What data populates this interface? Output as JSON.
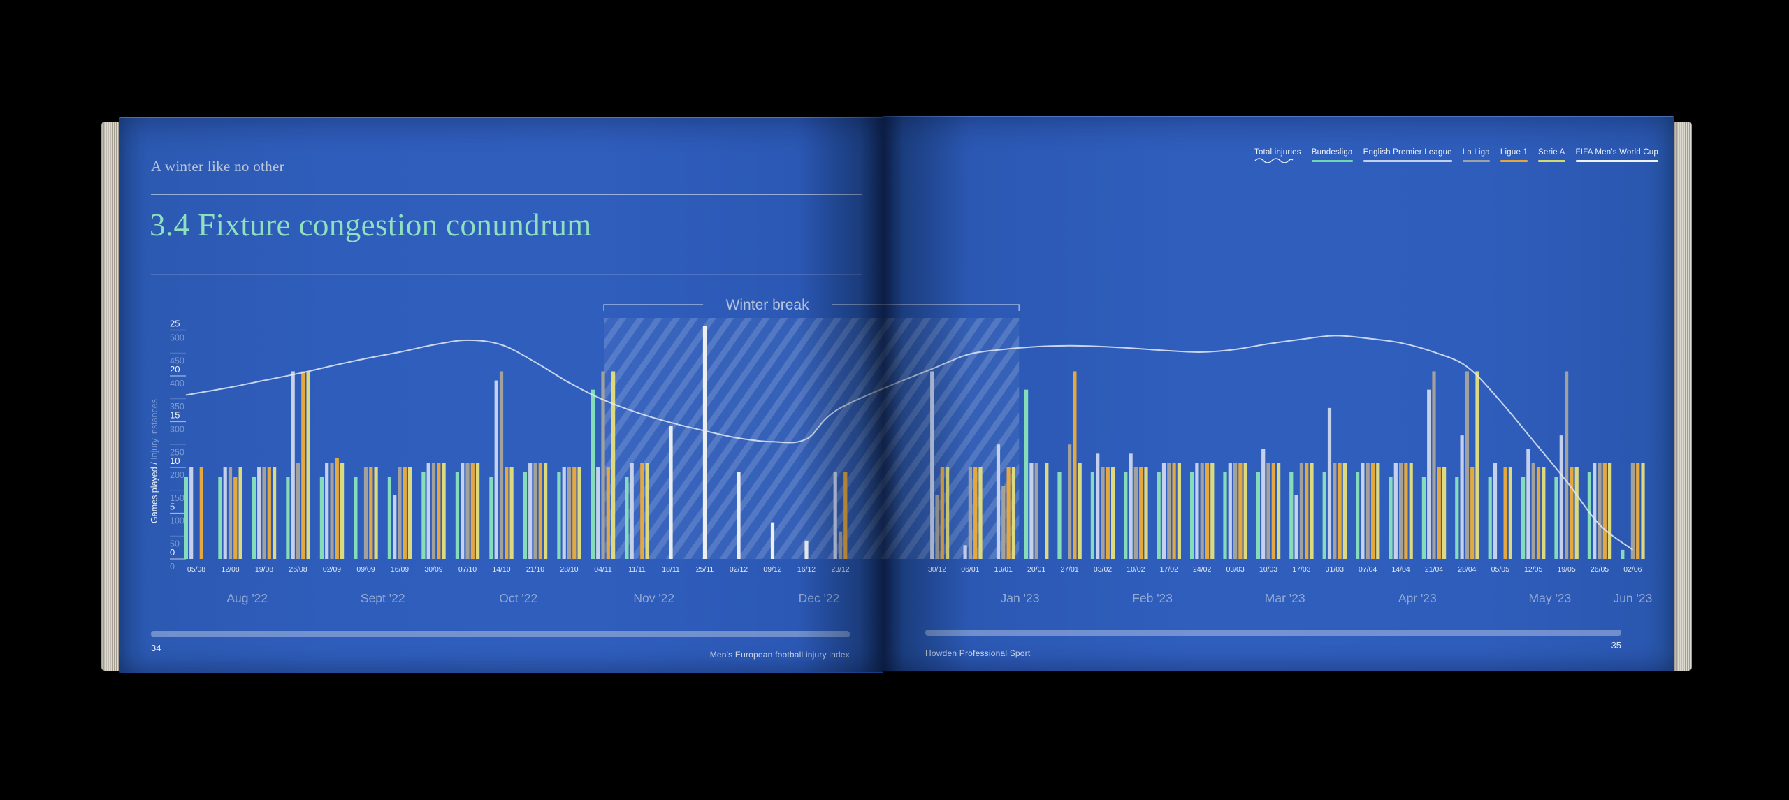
{
  "book": {
    "left_page": {
      "eyebrow": "A winter like no other",
      "title": "3.4 Fixture congestion conundrum",
      "page_number": "34",
      "footer_text": "Men's European football injury index"
    },
    "right_page": {
      "page_number": "35",
      "footer_text": "Howden Professional Sport"
    }
  },
  "legend": {
    "items": [
      {
        "label": "Total injuries",
        "color": "#e9eef6",
        "style": "wavy"
      },
      {
        "label": "Bundesliga",
        "color": "#6fd7ae",
        "style": "solid"
      },
      {
        "label": "English Premier League",
        "color": "#c3d0ec",
        "style": "solid"
      },
      {
        "label": "La Liga",
        "color": "#9fa2a4",
        "style": "solid"
      },
      {
        "label": "Ligue 1",
        "color": "#e3a53e",
        "style": "solid"
      },
      {
        "label": "Serie A",
        "color": "#d4da6e",
        "style": "solid"
      },
      {
        "label": "FIFA Men's World Cup",
        "color": "#eef1f5",
        "style": "solid"
      }
    ]
  },
  "chart_data": {
    "type": "bar",
    "title": "3.4 Fixture congestion conundrum",
    "ylabel": "Games played / Injury instances",
    "axes": {
      "games_played": {
        "min": 0,
        "max": 25,
        "step": 5
      },
      "injury_instances": {
        "min": 0,
        "max": 500,
        "step": 50
      }
    },
    "series": [
      {
        "key": "bundesliga",
        "name": "Bundesliga",
        "color": "#85dcba"
      },
      {
        "key": "epl",
        "name": "English Premier League",
        "color": "#c5d1ec"
      },
      {
        "key": "laliga",
        "name": "La Liga",
        "color": "#a3a19c"
      },
      {
        "key": "ligue1",
        "name": "Ligue 1",
        "color": "#e5a83f"
      },
      {
        "key": "seriea",
        "name": "Serie A",
        "color": "#dcd97e"
      },
      {
        "key": "worldcup",
        "name": "FIFA Men's World Cup",
        "color": "#eceff2"
      }
    ],
    "line_series": {
      "name": "Total injuries",
      "color": "#e3eaf5"
    },
    "annotation": {
      "label": "Winter break",
      "from_date": "04/11",
      "to_date": "20/01"
    },
    "weeks": [
      {
        "date": "05/08",
        "month": "Aug '22",
        "page": "left",
        "games": [
          9,
          10,
          0,
          10,
          0,
          0
        ],
        "total_injuries": 362
      },
      {
        "date": "12/08",
        "month": "Aug '22",
        "page": "left",
        "games": [
          9,
          10,
          10,
          9,
          10,
          0
        ],
        "total_injuries": 375
      },
      {
        "date": "19/08",
        "month": "Aug '22",
        "page": "left",
        "games": [
          9,
          10,
          10,
          10,
          10,
          0
        ],
        "total_injuries": 390
      },
      {
        "date": "26/08",
        "month": "Aug '22",
        "page": "left",
        "games": [
          9,
          20.5,
          10.5,
          20.5,
          20.5,
          0
        ],
        "total_injuries": 405
      },
      {
        "date": "02/09",
        "month": "Sept '22",
        "page": "left",
        "games": [
          9,
          10.5,
          10.5,
          11,
          10.5,
          0
        ],
        "total_injuries": 422
      },
      {
        "date": "09/09",
        "month": "Sept '22",
        "page": "left",
        "games": [
          9,
          0,
          10,
          10,
          10,
          0
        ],
        "total_injuries": 438
      },
      {
        "date": "16/09",
        "month": "Sept '22",
        "page": "left",
        "games": [
          9,
          7,
          10,
          10,
          10,
          0
        ],
        "total_injuries": 452
      },
      {
        "date": "30/09",
        "month": "Sept '22",
        "page": "left",
        "games": [
          9.5,
          10.5,
          10.5,
          10.5,
          10.5,
          0
        ],
        "total_injuries": 468
      },
      {
        "date": "07/10",
        "month": "Oct '22",
        "page": "left",
        "games": [
          9.5,
          10.5,
          10.5,
          10.5,
          10.5,
          0
        ],
        "total_injuries": 478
      },
      {
        "date": "14/10",
        "month": "Oct '22",
        "page": "left",
        "games": [
          9,
          19.5,
          20.5,
          10,
          10,
          0
        ],
        "total_injuries": 468
      },
      {
        "date": "21/10",
        "month": "Oct '22",
        "page": "left",
        "games": [
          9.5,
          10.5,
          10.5,
          10.5,
          10.5,
          0
        ],
        "total_injuries": 430
      },
      {
        "date": "28/10",
        "month": "Oct '22",
        "page": "left",
        "games": [
          9.5,
          10,
          10,
          10,
          10,
          0
        ],
        "total_injuries": 385
      },
      {
        "date": "04/11",
        "month": "Nov '22",
        "page": "left",
        "games": [
          18.5,
          10,
          20.5,
          10,
          20.5,
          0
        ],
        "total_injuries": 348
      },
      {
        "date": "11/11",
        "month": "Nov '22",
        "page": "left",
        "games": [
          9,
          10.5,
          0,
          10.5,
          10.5,
          0
        ],
        "total_injuries": 320
      },
      {
        "date": "18/11",
        "month": "Nov '22",
        "page": "left",
        "games": [
          0,
          0,
          0,
          0,
          0,
          14.5
        ],
        "total_injuries": 298
      },
      {
        "date": "25/11",
        "month": "Nov '22",
        "page": "left",
        "games": [
          0,
          0,
          0,
          0,
          0,
          25.5
        ],
        "total_injuries": 280
      },
      {
        "date": "02/12",
        "month": "Dec '22",
        "page": "left",
        "games": [
          0,
          0,
          0,
          0,
          0,
          9.5
        ],
        "total_injuries": 264
      },
      {
        "date": "09/12",
        "month": "Dec '22",
        "page": "left",
        "games": [
          0,
          0,
          0,
          0,
          0,
          4
        ],
        "total_injuries": 256
      },
      {
        "date": "16/12",
        "month": "Dec '22",
        "page": "left",
        "games": [
          0,
          0,
          0,
          0,
          0,
          2
        ],
        "total_injuries": 262
      },
      {
        "date": "23/12",
        "month": "Dec '22",
        "page": "left",
        "games": [
          0,
          9.5,
          3,
          9.5,
          0,
          0
        ],
        "total_injuries": 330
      },
      {
        "date": "30/12",
        "month": "Dec '22",
        "page": "right",
        "games": [
          0,
          20.5,
          7,
          10,
          10,
          0
        ],
        "total_injuries": 420
      },
      {
        "date": "06/01",
        "month": "Jan '23",
        "page": "right",
        "games": [
          0,
          1.5,
          10,
          10,
          10,
          0
        ],
        "total_injuries": 448
      },
      {
        "date": "13/01",
        "month": "Jan '23",
        "page": "right",
        "games": [
          0,
          12.5,
          8,
          10,
          10,
          0
        ],
        "total_injuries": 458
      },
      {
        "date": "20/01",
        "month": "Jan '23",
        "page": "right",
        "games": [
          18.5,
          10.5,
          10.5,
          0,
          10.5,
          0
        ],
        "total_injuries": 464
      },
      {
        "date": "27/01",
        "month": "Jan '23",
        "page": "right",
        "games": [
          9.5,
          0,
          12.5,
          20.5,
          10.5,
          0
        ],
        "total_injuries": 466
      },
      {
        "date": "03/02",
        "month": "Feb '23",
        "page": "right",
        "games": [
          9.5,
          11.5,
          10,
          10,
          10,
          0
        ],
        "total_injuries": 464
      },
      {
        "date": "10/02",
        "month": "Feb '23",
        "page": "right",
        "games": [
          9.5,
          11.5,
          10,
          10,
          10,
          0
        ],
        "total_injuries": 460
      },
      {
        "date": "17/02",
        "month": "Feb '23",
        "page": "right",
        "games": [
          9.5,
          10.5,
          10.5,
          10.5,
          10.5,
          0
        ],
        "total_injuries": 455
      },
      {
        "date": "24/02",
        "month": "Feb '23",
        "page": "right",
        "games": [
          9.5,
          10.5,
          10.5,
          10.5,
          10.5,
          0
        ],
        "total_injuries": 452
      },
      {
        "date": "03/03",
        "month": "Mar '23",
        "page": "right",
        "games": [
          9.5,
          10.5,
          10.5,
          10.5,
          10.5,
          0
        ],
        "total_injuries": 458
      },
      {
        "date": "10/03",
        "month": "Mar '23",
        "page": "right",
        "games": [
          9.5,
          12,
          10.5,
          10.5,
          10.5,
          0
        ],
        "total_injuries": 470
      },
      {
        "date": "17/03",
        "month": "Mar '23",
        "page": "right",
        "games": [
          9.5,
          7,
          10.5,
          10.5,
          10.5,
          0
        ],
        "total_injuries": 480
      },
      {
        "date": "31/03",
        "month": "Mar '23",
        "page": "right",
        "games": [
          9.5,
          16.5,
          10.5,
          10.5,
          10.5,
          0
        ],
        "total_injuries": 488
      },
      {
        "date": "07/04",
        "month": "Apr '23",
        "page": "right",
        "games": [
          9.5,
          10.5,
          10.5,
          10.5,
          10.5,
          0
        ],
        "total_injuries": 482
      },
      {
        "date": "14/04",
        "month": "Apr '23",
        "page": "right",
        "games": [
          9,
          10.5,
          10.5,
          10.5,
          10.5,
          0
        ],
        "total_injuries": 472
      },
      {
        "date": "21/04",
        "month": "Apr '23",
        "page": "right",
        "games": [
          9,
          18.5,
          20.5,
          10,
          10,
          0
        ],
        "total_injuries": 452
      },
      {
        "date": "28/04",
        "month": "Apr '23",
        "page": "right",
        "games": [
          9,
          13.5,
          20.5,
          10,
          20.5,
          0
        ],
        "total_injuries": 420
      },
      {
        "date": "05/05",
        "month": "May '23",
        "page": "right",
        "games": [
          9,
          10.5,
          0,
          10,
          10,
          0
        ],
        "total_injuries": 345
      },
      {
        "date": "12/05",
        "month": "May '23",
        "page": "right",
        "games": [
          9,
          12,
          10.5,
          10,
          10,
          0
        ],
        "total_injuries": 258
      },
      {
        "date": "19/05",
        "month": "May '23",
        "page": "right",
        "games": [
          9,
          13.5,
          20.5,
          10,
          10,
          0
        ],
        "total_injuries": 170
      },
      {
        "date": "26/05",
        "month": "May '23",
        "page": "right",
        "games": [
          9.5,
          10.5,
          10.5,
          10.5,
          10.5,
          0
        ],
        "total_injuries": 75
      },
      {
        "date": "02/06",
        "month": "Jun '23",
        "page": "right",
        "games": [
          1,
          0,
          10.5,
          10.5,
          10.5,
          0
        ],
        "total_injuries": 20
      }
    ]
  }
}
